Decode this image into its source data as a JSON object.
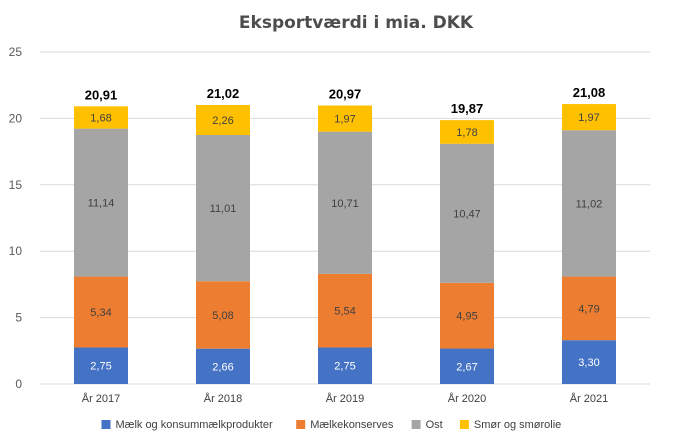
{
  "chart_data": {
    "type": "bar",
    "stacked": true,
    "title": "Eksportværdi  i mia. DKK",
    "xlabel": "",
    "ylabel": "",
    "ylim": [
      0,
      25
    ],
    "yticks": [
      0,
      5,
      10,
      15,
      20,
      25
    ],
    "grid": true,
    "legend_position": "bottom",
    "categories": [
      "År 2017",
      "År 2018",
      "År 2019",
      "År 2020",
      "År 2021"
    ],
    "series": [
      {
        "name": "Mælk og konsummælkprodukter",
        "color": "#4472c4",
        "label_color": "#ffffff",
        "values": [
          2.75,
          2.66,
          2.75,
          2.67,
          3.3
        ],
        "labels": [
          "2,75",
          "2,66",
          "2,75",
          "2,67",
          "3,30"
        ]
      },
      {
        "name": "Mælkekonserves",
        "color": "#ed7d31",
        "label_color": "#404040",
        "values": [
          5.34,
          5.08,
          5.54,
          4.95,
          4.79
        ],
        "labels": [
          "5,34",
          "5,08",
          "5,54",
          "4,95",
          "4,79"
        ]
      },
      {
        "name": "Ost",
        "color": "#a5a5a5",
        "label_color": "#404040",
        "values": [
          11.14,
          11.01,
          10.71,
          10.47,
          11.02
        ],
        "labels": [
          "11,14",
          "11,01",
          "10,71",
          "10,47",
          "11,02"
        ]
      },
      {
        "name": "Smør og smørolie",
        "color": "#ffc000",
        "label_color": "#404040",
        "values": [
          1.68,
          2.26,
          1.97,
          1.78,
          1.97
        ],
        "labels": [
          "1,68",
          "2,26",
          "1,97",
          "1,78",
          "1,97"
        ]
      }
    ],
    "totals": [
      "20,91",
      "21,02",
      "20,97",
      "19,87",
      "21,08"
    ]
  }
}
